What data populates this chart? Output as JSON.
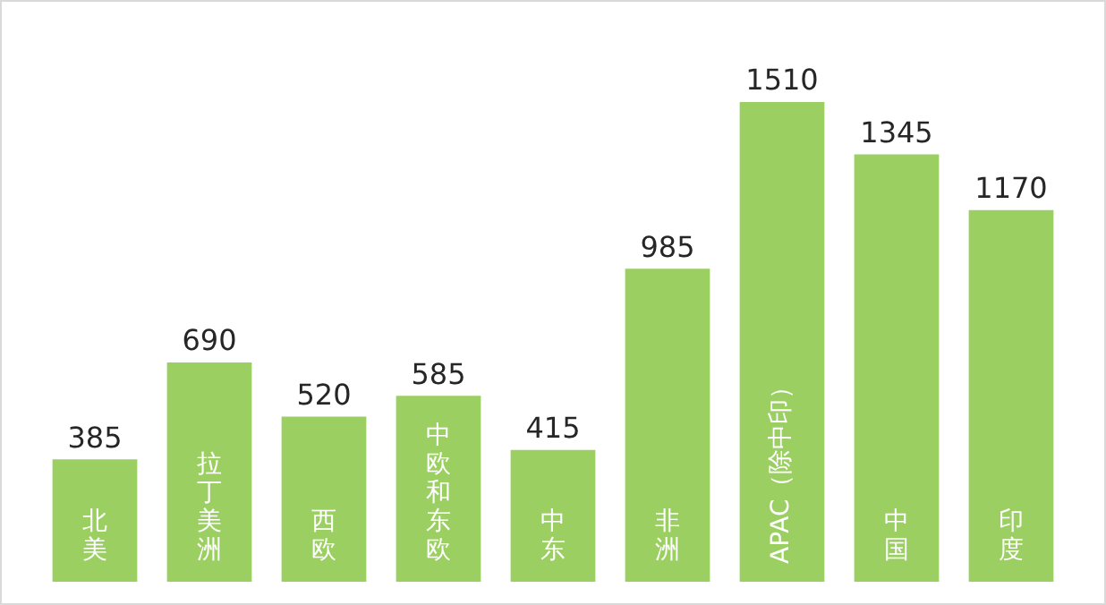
{
  "chart_data": {
    "type": "bar",
    "categories": [
      "北美",
      "拉丁美洲",
      "西欧",
      "中欧和东欧",
      "中东",
      "非洲",
      "APAC（除中印）",
      "中国",
      "印度"
    ],
    "values": [
      385,
      690,
      520,
      585,
      415,
      985,
      1510,
      1345,
      1170
    ],
    "color": "#9bcf62",
    "data_labels": true
  }
}
